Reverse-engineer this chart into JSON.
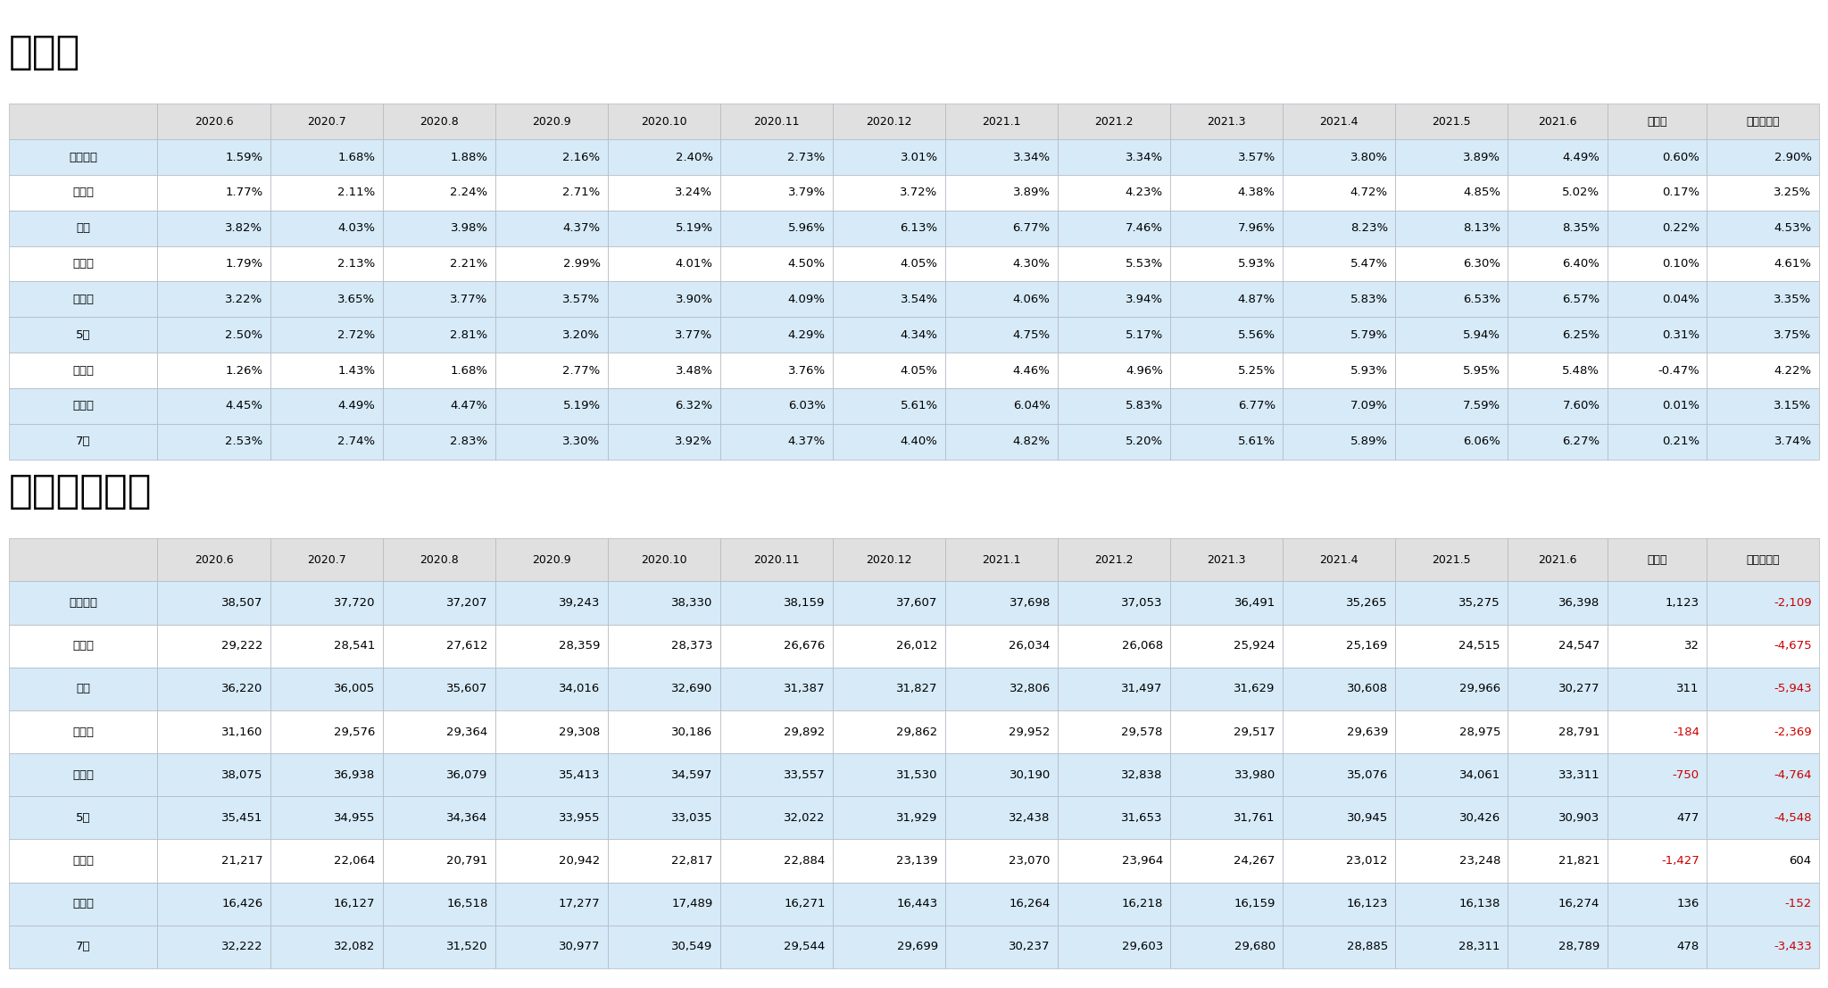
{
  "title1": "空室率",
  "title2": "平均募集賃料",
  "columns": [
    "",
    "2020.6",
    "2020.7",
    "2020.8",
    "2020.9",
    "2020.10",
    "2020.11",
    "2020.12",
    "2021.1",
    "2021.2",
    "2021.3",
    "2021.4",
    "2021.5",
    "2021.6",
    "前月比",
    "前年同月比"
  ],
  "vacancy_rows": [
    [
      "千代田区",
      "1.59%",
      "1.68%",
      "1.88%",
      "2.16%",
      "2.40%",
      "2.73%",
      "3.01%",
      "3.34%",
      "3.34%",
      "3.57%",
      "3.80%",
      "3.89%",
      "4.49%",
      "0.60%",
      "2.90%"
    ],
    [
      "中央区",
      "1.77%",
      "2.11%",
      "2.24%",
      "2.71%",
      "3.24%",
      "3.79%",
      "3.72%",
      "3.89%",
      "4.23%",
      "4.38%",
      "4.72%",
      "4.85%",
      "5.02%",
      "0.17%",
      "3.25%"
    ],
    [
      "港区",
      "3.82%",
      "4.03%",
      "3.98%",
      "4.37%",
      "5.19%",
      "5.96%",
      "6.13%",
      "6.77%",
      "7.46%",
      "7.96%",
      "8.23%",
      "8.13%",
      "8.35%",
      "0.22%",
      "4.53%"
    ],
    [
      "新宿区",
      "1.79%",
      "2.13%",
      "2.21%",
      "2.99%",
      "4.01%",
      "4.50%",
      "4.05%",
      "4.30%",
      "5.53%",
      "5.93%",
      "5.47%",
      "6.30%",
      "6.40%",
      "0.10%",
      "4.61%"
    ],
    [
      "渋谷区",
      "3.22%",
      "3.65%",
      "3.77%",
      "3.57%",
      "3.90%",
      "4.09%",
      "3.54%",
      "4.06%",
      "3.94%",
      "4.87%",
      "5.83%",
      "6.53%",
      "6.57%",
      "0.04%",
      "3.35%"
    ],
    [
      "5区",
      "2.50%",
      "2.72%",
      "2.81%",
      "3.20%",
      "3.77%",
      "4.29%",
      "4.34%",
      "4.75%",
      "5.17%",
      "5.56%",
      "5.79%",
      "5.94%",
      "6.25%",
      "0.31%",
      "3.75%"
    ],
    [
      "品川区",
      "1.26%",
      "1.43%",
      "1.68%",
      "2.77%",
      "3.48%",
      "3.76%",
      "4.05%",
      "4.46%",
      "4.96%",
      "5.25%",
      "5.93%",
      "5.95%",
      "5.48%",
      "-0.47%",
      "4.22%"
    ],
    [
      "江東区",
      "4.45%",
      "4.49%",
      "4.47%",
      "5.19%",
      "6.32%",
      "6.03%",
      "5.61%",
      "6.04%",
      "5.83%",
      "6.77%",
      "7.09%",
      "7.59%",
      "7.60%",
      "0.01%",
      "3.15%"
    ],
    [
      "7区",
      "2.53%",
      "2.74%",
      "2.83%",
      "3.30%",
      "3.92%",
      "4.37%",
      "4.40%",
      "4.82%",
      "5.20%",
      "5.61%",
      "5.89%",
      "6.06%",
      "6.27%",
      "0.21%",
      "3.74%"
    ]
  ],
  "rent_rows": [
    [
      "千代田区",
      "38,507",
      "37,720",
      "37,207",
      "39,243",
      "38,330",
      "38,159",
      "37,607",
      "37,698",
      "37,053",
      "36,491",
      "35,265",
      "35,275",
      "36,398",
      "1,123",
      "-2,109"
    ],
    [
      "中央区",
      "29,222",
      "28,541",
      "27,612",
      "28,359",
      "28,373",
      "26,676",
      "26,012",
      "26,034",
      "26,068",
      "25,924",
      "25,169",
      "24,515",
      "24,547",
      "32",
      "-4,675"
    ],
    [
      "港区",
      "36,220",
      "36,005",
      "35,607",
      "34,016",
      "32,690",
      "31,387",
      "31,827",
      "32,806",
      "31,497",
      "31,629",
      "30,608",
      "29,966",
      "30,277",
      "311",
      "-5,943"
    ],
    [
      "新宿区",
      "31,160",
      "29,576",
      "29,364",
      "29,308",
      "30,186",
      "29,892",
      "29,862",
      "29,952",
      "29,578",
      "29,517",
      "29,639",
      "28,975",
      "28,791",
      "-184",
      "-2,369"
    ],
    [
      "渋谷区",
      "38,075",
      "36,938",
      "36,079",
      "35,413",
      "34,597",
      "33,557",
      "31,530",
      "30,190",
      "32,838",
      "33,980",
      "35,076",
      "34,061",
      "33,311",
      "-750",
      "-4,764"
    ],
    [
      "5区",
      "35,451",
      "34,955",
      "34,364",
      "33,955",
      "33,035",
      "32,022",
      "31,929",
      "32,438",
      "31,653",
      "31,761",
      "30,945",
      "30,426",
      "30,903",
      "477",
      "-4,548"
    ],
    [
      "品川区",
      "21,217",
      "22,064",
      "20,791",
      "20,942",
      "22,817",
      "22,884",
      "23,139",
      "23,070",
      "23,964",
      "24,267",
      "23,012",
      "23,248",
      "21,821",
      "-1,427",
      "604"
    ],
    [
      "江東区",
      "16,426",
      "16,127",
      "16,518",
      "17,277",
      "17,489",
      "16,271",
      "16,443",
      "16,264",
      "16,218",
      "16,159",
      "16,123",
      "16,138",
      "16,274",
      "136",
      "-152"
    ],
    [
      "7区",
      "32,222",
      "32,082",
      "31,520",
      "30,977",
      "30,549",
      "29,544",
      "29,699",
      "30,237",
      "29,603",
      "29,680",
      "28,885",
      "28,311",
      "28,789",
      "478",
      "-3,433"
    ]
  ],
  "bg_color": "#ffffff",
  "header_bg": "#e0e0e0",
  "row_alt_bg": "#d6eaf8",
  "row_white_bg": "#ffffff",
  "border_color": "#b0b8c0",
  "text_color": "#000000",
  "red_color": "#cc0000",
  "title_color": "#000000",
  "highlight_rows": [
    0,
    2,
    4,
    5,
    7,
    8
  ]
}
